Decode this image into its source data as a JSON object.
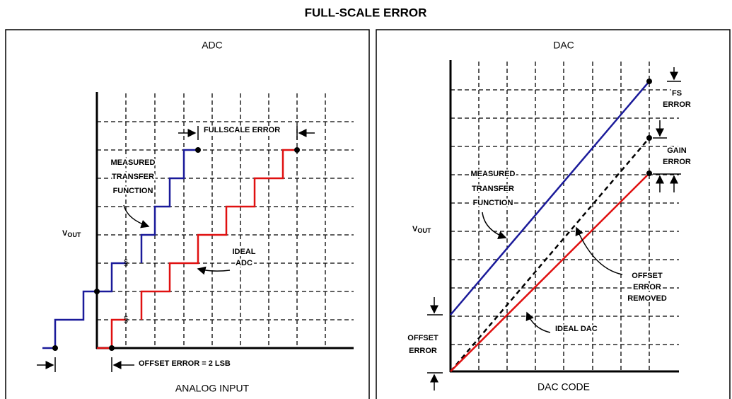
{
  "title": "FULL-SCALE ERROR",
  "adc": {
    "title": "ADC",
    "y_label": {
      "main": "V",
      "sub": "OUT"
    },
    "x_label": "ANALOG INPUT",
    "measured_label": [
      "MEASURED",
      "TRANSFER",
      "FUNCTION"
    ],
    "fullscale_label": "FULLSCALE ERROR",
    "ideal_label": [
      "IDEAL",
      "ADC"
    ],
    "offset_label": "OFFSET ERROR = 2 LSB"
  },
  "dac": {
    "title": "DAC",
    "y_label": {
      "main": "V",
      "sub": "OUT"
    },
    "x_label": "DAC CODE",
    "measured_label": [
      "MEASURED",
      "TRANSFER",
      "FUNCTION"
    ],
    "offset_label": [
      "OFFSET",
      "ERROR"
    ],
    "fs_label": [
      "FS",
      "ERROR"
    ],
    "gain_label": [
      "GAIN",
      "ERROR"
    ],
    "removed_label": [
      "OFFSET",
      "ERROR",
      "REMOVED"
    ],
    "ideal_label": "IDEAL DAC"
  }
}
